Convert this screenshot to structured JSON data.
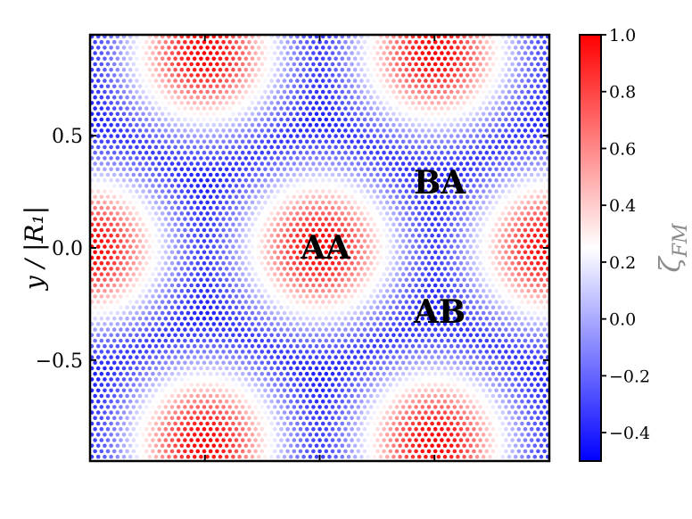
{
  "chart_data": {
    "type": "heatmap",
    "title": "",
    "xlabel": "",
    "ylabel": "y / |R₁|",
    "xlim": [
      -1.0,
      1.0
    ],
    "ylim": [
      -0.95,
      0.95
    ],
    "yticks": [
      {
        "value": 0.5,
        "label": "0.5"
      },
      {
        "value": 0.0,
        "label": "0.0"
      },
      {
        "value": -0.5,
        "label": "−0.5"
      }
    ],
    "xticks": [
      -0.5,
      0.0,
      0.5
    ],
    "colorbar": {
      "label": "ζ",
      "label_subscript": "FM",
      "range": [
        -0.5,
        1.0
      ],
      "ticks": [
        {
          "value": 1.0,
          "label": "1.0"
        },
        {
          "value": 0.8,
          "label": "0.8"
        },
        {
          "value": 0.6,
          "label": "0.6"
        },
        {
          "value": 0.4,
          "label": "0.4"
        },
        {
          "value": 0.2,
          "label": "0.2"
        },
        {
          "value": 0.0,
          "label": "0.0"
        },
        {
          "value": -0.2,
          "label": "−0.2"
        },
        {
          "value": -0.4,
          "label": "−0.4"
        }
      ],
      "colormap": "bwr",
      "colors": {
        "low": "#0000ff",
        "mid": "#ffffff",
        "high": "#ff0000"
      },
      "center_value": 0.25
    },
    "max_value": 1.0,
    "min_value": -0.5,
    "maxima_locations": [
      {
        "x": 0.0,
        "y": 0.0
      },
      {
        "x": -1.0,
        "y": 0.0
      },
      {
        "x": 1.0,
        "y": 0.0
      },
      {
        "x": -0.5,
        "y": 0.866
      },
      {
        "x": 0.5,
        "y": 0.866
      },
      {
        "x": -0.5,
        "y": -0.866
      },
      {
        "x": 0.5,
        "y": -0.866
      }
    ],
    "annotations": [
      {
        "text": "AA",
        "x": 0.0,
        "y": 0.0
      },
      {
        "text": "BA",
        "x": 0.53,
        "y": 0.29
      },
      {
        "text": "AB",
        "x": 0.53,
        "y": -0.29
      }
    ],
    "grid": false,
    "legend": "none"
  }
}
